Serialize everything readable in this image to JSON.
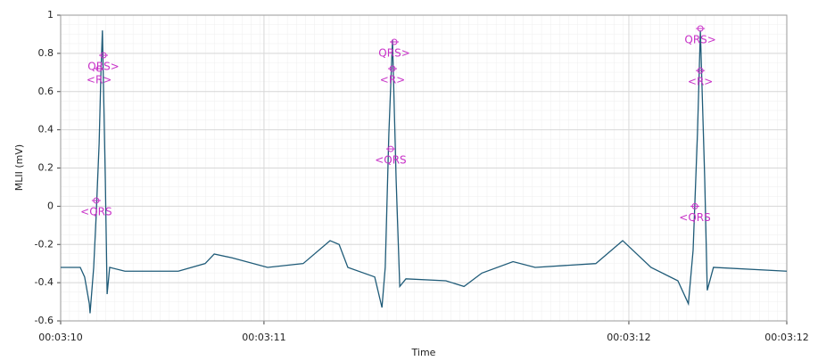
{
  "chart_data": {
    "type": "line",
    "x_label": "Time",
    "y_label": "MLII (mV)",
    "x": [
      0,
      0.054,
      0.066,
      0.079,
      0.081,
      0.091,
      0.098,
      0.106,
      0.111,
      0.115,
      0.123,
      0.128,
      0.135,
      0.177,
      0.324,
      0.398,
      0.423,
      0.472,
      0.57,
      0.668,
      0.742,
      0.767,
      0.791,
      0.865,
      0.885,
      0.894,
      0.904,
      0.914,
      0.924,
      0.934,
      0.951,
      1.061,
      1.111,
      1.16,
      1.246,
      1.307,
      1.474,
      1.548,
      1.626,
      1.7,
      1.729,
      1.742,
      1.754,
      1.762,
      1.774,
      1.781,
      1.798,
      2.0
    ],
    "values": [
      -0.32,
      -0.32,
      -0.37,
      -0.51,
      -0.56,
      -0.32,
      -0.04,
      0.33,
      0.7,
      0.92,
      0.14,
      -0.46,
      -0.32,
      -0.34,
      -0.34,
      -0.3,
      -0.25,
      -0.27,
      -0.32,
      -0.3,
      -0.18,
      -0.2,
      -0.32,
      -0.37,
      -0.53,
      -0.32,
      0.38,
      0.87,
      0.14,
      -0.42,
      -0.38,
      -0.39,
      -0.42,
      -0.35,
      -0.29,
      -0.32,
      -0.3,
      -0.18,
      -0.32,
      -0.39,
      -0.51,
      -0.23,
      0.38,
      0.92,
      0.14,
      -0.44,
      -0.32,
      -0.34
    ],
    "color": "#1f5b78",
    "xlim": [
      0,
      2
    ],
    "ylim": [
      -0.6,
      1
    ],
    "xticks": [
      {
        "value": 0,
        "label": "00:03:10"
      },
      {
        "value": 0.56,
        "label": "00:03:11"
      },
      {
        "value": 1.565,
        "label": "00:03:12"
      },
      {
        "value": 2,
        "label": "00:03:12"
      }
    ],
    "yticks": [
      -0.6,
      -0.4,
      -0.2,
      0,
      0.2,
      0.4,
      0.6,
      0.8,
      1
    ],
    "grid": true,
    "annotation_color": "#c832c8",
    "annotations": [
      {
        "text": "<QRS",
        "x": 0.098,
        "y": 0.03
      },
      {
        "text": "<R>",
        "x": 0.106,
        "y": 0.72
      },
      {
        "text": "QRS>",
        "x": 0.118,
        "y": 0.79
      },
      {
        "text": "<QRS",
        "x": 0.909,
        "y": 0.3
      },
      {
        "text": "<R>",
        "x": 0.914,
        "y": 0.72
      },
      {
        "text": "QRS>",
        "x": 0.919,
        "y": 0.86
      },
      {
        "text": "<QRS",
        "x": 1.747,
        "y": 0
      },
      {
        "text": "<R>",
        "x": 1.762,
        "y": 0.71
      },
      {
        "text": "QRS>",
        "x": 1.762,
        "y": 0.93
      }
    ]
  }
}
